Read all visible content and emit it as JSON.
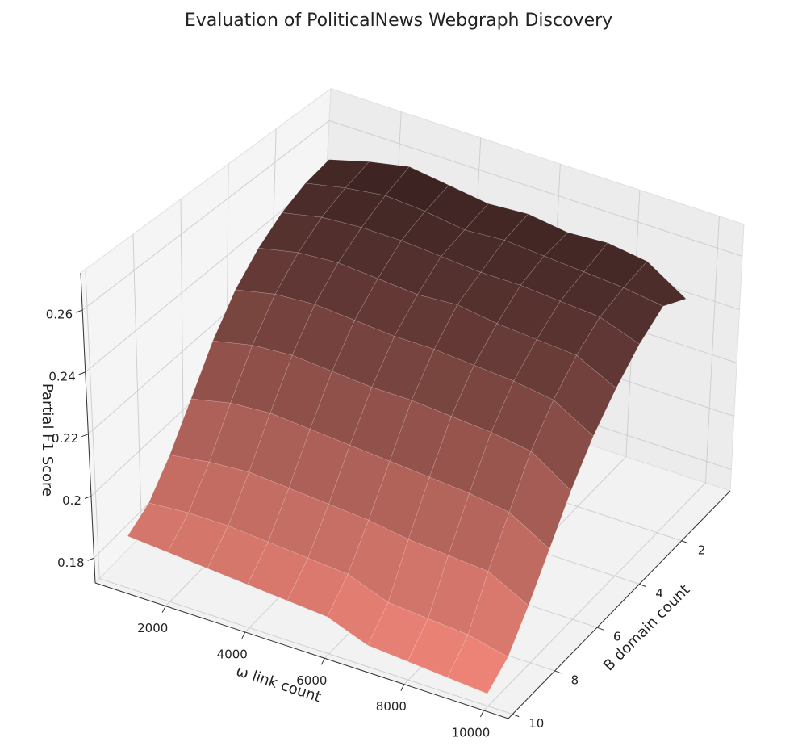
{
  "chart_data": {
    "type": "surface3d",
    "title": "Evaluation of PoliticalNews Webgraph Discovery",
    "x_label": "ω link count",
    "y_label": "B domain count",
    "z_label": "Partial F1 Score",
    "x": [
      1000,
      2000,
      3000,
      4000,
      5000,
      6000,
      7000,
      8000,
      9000,
      10000
    ],
    "y": [
      1,
      2,
      3,
      4,
      5,
      6,
      7,
      8,
      9,
      10
    ],
    "z": [
      [
        0.258,
        0.262,
        0.265,
        0.263,
        0.261,
        0.262,
        0.26,
        0.261,
        0.259,
        0.25
      ],
      [
        0.256,
        0.259,
        0.261,
        0.26,
        0.258,
        0.259,
        0.258,
        0.257,
        0.256,
        0.254
      ],
      [
        0.252,
        0.255,
        0.256,
        0.256,
        0.255,
        0.254,
        0.254,
        0.253,
        0.252,
        0.247
      ],
      [
        0.246,
        0.249,
        0.25,
        0.249,
        0.248,
        0.249,
        0.247,
        0.246,
        0.245,
        0.238
      ],
      [
        0.238,
        0.241,
        0.242,
        0.241,
        0.24,
        0.24,
        0.239,
        0.238,
        0.236,
        0.228
      ],
      [
        0.227,
        0.23,
        0.231,
        0.23,
        0.229,
        0.229,
        0.228,
        0.227,
        0.225,
        0.216
      ],
      [
        0.214,
        0.217,
        0.218,
        0.217,
        0.216,
        0.215,
        0.214,
        0.213,
        0.211,
        0.203
      ],
      [
        0.202,
        0.204,
        0.205,
        0.204,
        0.203,
        0.202,
        0.2,
        0.199,
        0.198,
        0.191
      ],
      [
        0.193,
        0.194,
        0.194,
        0.193,
        0.192,
        0.191,
        0.186,
        0.185,
        0.184,
        0.181
      ],
      [
        0.189,
        0.188,
        0.187,
        0.186,
        0.185,
        0.184,
        0.179,
        0.178,
        0.177,
        0.176
      ]
    ],
    "xlim": [
      230,
      10620
    ],
    "ylim": [
      10.2,
      -0.3
    ],
    "zlim": [
      0.172,
      0.272
    ],
    "xticks": [
      2000,
      4000,
      6000,
      8000,
      10000
    ],
    "yticks": [
      2,
      4,
      6,
      8,
      10
    ],
    "zticks": [
      0.18,
      0.2,
      0.22,
      0.24,
      0.26
    ],
    "colormap": [
      "#f4877a",
      "#372120"
    ],
    "grid": true
  }
}
